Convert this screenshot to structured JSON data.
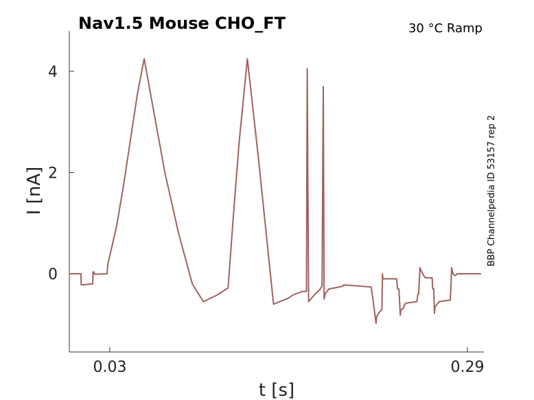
{
  "chart_data": {
    "type": "line",
    "title": "Nav1.5  Mouse  CHO_FT",
    "subtitle": "30 °C  Ramp",
    "side_label": "BBP Channelpedia ID 53157 rep 2",
    "xlabel": "t [s]",
    "ylabel": "I [nA]",
    "xlim": [
      0.0,
      0.3
    ],
    "ylim": [
      -1.5,
      4.8
    ],
    "xticks": [
      0.03,
      0.29
    ],
    "xtick_labels": [
      "0.03",
      "0.29"
    ],
    "yticks": [
      0,
      2,
      4
    ],
    "ytick_labels": [
      "0",
      "2",
      "4"
    ],
    "line_color": "#a0605d",
    "series": [
      {
        "x": [
          0.0,
          0.009,
          0.0092,
          0.0175,
          0.0178,
          0.0185,
          0.0188,
          0.028,
          0.0285,
          0.035,
          0.04,
          0.045,
          0.05,
          0.055,
          0.06,
          0.062,
          0.07,
          0.08,
          0.09,
          0.098,
          0.108,
          0.116,
          0.12,
          0.124,
          0.13,
          0.138,
          0.146,
          0.149,
          0.16,
          0.163,
          0.17,
          0.173,
          0.1735,
          0.1745,
          0.18,
          0.1825,
          0.1834,
          0.1843,
          0.1852,
          0.1858,
          0.1865,
          0.1878,
          0.1895,
          0.199,
          0.2,
          0.22,
          0.2213,
          0.2236,
          0.224,
          0.2255,
          0.2278,
          0.2282,
          0.2285,
          0.2298,
          0.2385,
          0.2392,
          0.2402,
          0.2412,
          0.2415,
          0.2435,
          0.2445,
          0.2455,
          0.2532,
          0.254,
          0.2545,
          0.2555,
          0.2565,
          0.2575,
          0.2585,
          0.2595,
          0.2643,
          0.2648,
          0.2655,
          0.266,
          0.2665,
          0.2675,
          0.2685,
          0.2695,
          0.2775,
          0.278,
          0.2785,
          0.279,
          0.2795,
          0.2805,
          0.2815,
          0.2825,
          0.2905,
          0.291,
          0.2915,
          0.292,
          0.2925,
          0.2935,
          0.2945,
          0.296,
          0.3
        ],
        "y": [
          0.0,
          0.0,
          -0.22,
          -0.2,
          0.04,
          0.03,
          -0.01,
          0.0,
          0.18,
          0.95,
          1.75,
          2.65,
          3.55,
          4.25,
          3.5,
          3.2,
          2.0,
          0.8,
          -0.2,
          -0.55,
          -0.42,
          -0.28,
          1.2,
          2.6,
          4.25,
          2.3,
          0.2,
          -0.6,
          -0.48,
          -0.42,
          -0.35,
          -0.35,
          4.05,
          -0.55,
          -0.38,
          -0.32,
          -0.28,
          -0.25,
          3.7,
          -0.5,
          -0.4,
          -0.35,
          -0.3,
          -0.25,
          -0.22,
          -0.26,
          -0.5,
          -0.98,
          -0.85,
          -0.78,
          -0.7,
          0.0,
          -0.1,
          -0.1,
          -0.1,
          -0.3,
          -0.3,
          -0.82,
          -0.72,
          -0.68,
          -0.6,
          -0.58,
          -0.55,
          -0.4,
          -0.4,
          0.12,
          0.05,
          0.0,
          -0.05,
          -0.08,
          -0.08,
          -0.3,
          -0.3,
          -0.78,
          -0.65,
          -0.62,
          -0.58,
          -0.55,
          -0.52,
          -0.25,
          0.12,
          0.05,
          0.0,
          -0.03,
          -0.03,
          0.0,
          0.0,
          0.0,
          0.0,
          0.0,
          0.0,
          0.0,
          0.0,
          0.0,
          0.0
        ]
      }
    ]
  }
}
